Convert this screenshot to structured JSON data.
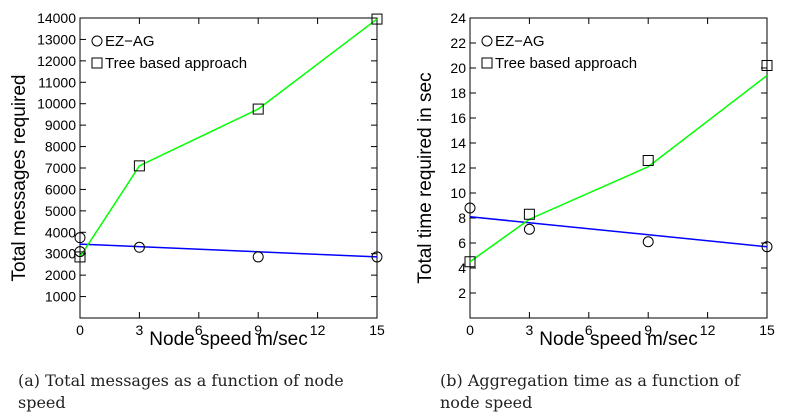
{
  "chart_data": [
    {
      "type": "line",
      "xlabel": "Node speed m/sec",
      "ylabel": "Total messages required",
      "xlim": [
        0,
        15
      ],
      "ylim": [
        0,
        14000
      ],
      "xticks": [
        0,
        3,
        6,
        9,
        12,
        15
      ],
      "yticks": [
        1000,
        2000,
        3000,
        4000,
        5000,
        6000,
        7000,
        8000,
        9000,
        10000,
        11000,
        12000,
        13000,
        14000
      ],
      "legend_position": "top-left",
      "grid": false,
      "series": [
        {
          "name": "EZ−AG",
          "marker": "circle",
          "line_color": "#0000ff",
          "points": [
            [
              0,
              3750
            ],
            [
              0,
              3100
            ],
            [
              3,
              3300
            ],
            [
              9,
              2850
            ],
            [
              15,
              2850
            ]
          ],
          "fit": [
            [
              0,
              3450
            ],
            [
              15,
              2850
            ]
          ]
        },
        {
          "name": "Tree based approach",
          "marker": "square",
          "line_color": "#00ff00",
          "points": [
            [
              0,
              2850
            ],
            [
              3,
              7100
            ],
            [
              9,
              9750
            ],
            [
              15,
              13950
            ]
          ],
          "fit": [
            [
              0,
              2850
            ],
            [
              3,
              7100
            ],
            [
              9,
              9750
            ],
            [
              15,
              13950
            ]
          ]
        }
      ],
      "caption": "(a) Total messages as a function of node speed"
    },
    {
      "type": "line",
      "xlabel": "Node speed m/sec",
      "ylabel": "Total time required in sec",
      "xlim": [
        0,
        15
      ],
      "ylim": [
        0,
        24
      ],
      "xticks": [
        0,
        3,
        6,
        9,
        12,
        15
      ],
      "yticks": [
        2,
        4,
        6,
        8,
        10,
        12,
        14,
        16,
        18,
        20,
        22,
        24
      ],
      "legend_position": "top-left",
      "grid": false,
      "series": [
        {
          "name": "EZ−AG",
          "marker": "circle",
          "line_color": "#0000ff",
          "points": [
            [
              0,
              8.8
            ],
            [
              3,
              7.1
            ],
            [
              9,
              6.1
            ],
            [
              15,
              5.7
            ]
          ],
          "fit": [
            [
              0,
              8.1
            ],
            [
              15,
              5.7
            ]
          ]
        },
        {
          "name": "Tree based approach",
          "marker": "square",
          "line_color": "#00ff00",
          "points": [
            [
              0,
              4.5
            ],
            [
              3,
              8.3
            ],
            [
              9,
              12.6
            ],
            [
              15,
              20.2
            ]
          ],
          "fit": [
            [
              0,
              4.5
            ],
            [
              3,
              7.9
            ],
            [
              9,
              12.1
            ],
            [
              15,
              19.4
            ]
          ]
        }
      ],
      "caption": "(b) Aggregation time as a function of node speed"
    }
  ]
}
